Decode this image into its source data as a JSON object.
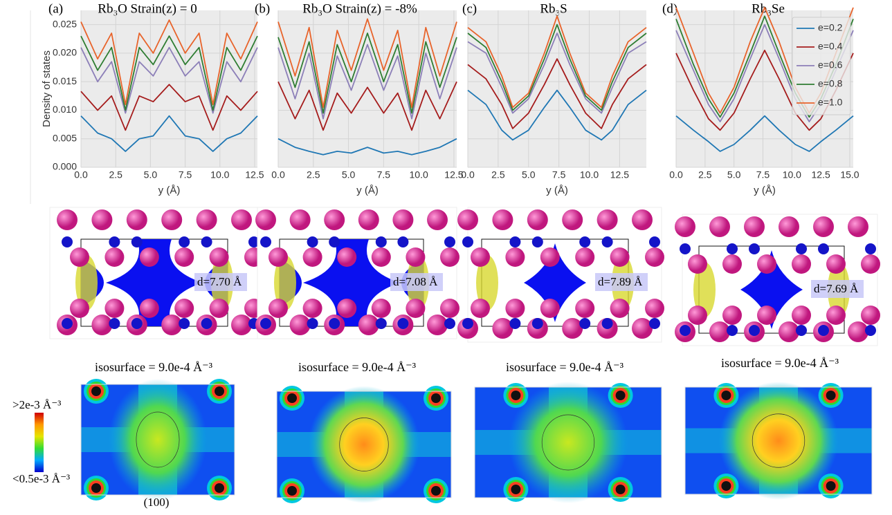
{
  "chart_data": [
    {
      "type": "line",
      "panel": "(a)",
      "title": "Rb₃O Strain(z) = 0",
      "ylabel": "Density of states",
      "xlabel": "y (Å)",
      "x": [
        0,
        1.2,
        2.2,
        3.2,
        4.2,
        5.2,
        6.35,
        7.5,
        8.5,
        9.5,
        10.5,
        11.5,
        12.7
      ],
      "xlim": [
        0,
        12.7
      ],
      "ylim": [
        0,
        0.0275
      ],
      "grid": true,
      "xticks": [
        {
          "value": 0,
          "label": "0.0"
        },
        {
          "value": 2.5,
          "label": "2.5"
        },
        {
          "value": 5,
          "label": "5.0"
        },
        {
          "value": 7.5,
          "label": "7.5"
        },
        {
          "value": 10,
          "label": "10.0"
        },
        {
          "value": 12.5,
          "label": "12.5"
        }
      ],
      "yticks": [
        {
          "value": 0,
          "label": "0.000"
        },
        {
          "value": 0.005,
          "label": "0.005"
        },
        {
          "value": 0.01,
          "label": "0.010"
        },
        {
          "value": 0.015,
          "label": "0.015"
        },
        {
          "value": 0.02,
          "label": "0.020"
        },
        {
          "value": 0.025,
          "label": "0.025"
        }
      ],
      "series": [
        {
          "color": "#1f77b4",
          "values": [
            0.009,
            0.006,
            0.005,
            0.0028,
            0.005,
            0.0055,
            0.009,
            0.0055,
            0.005,
            0.0028,
            0.005,
            0.006,
            0.009
          ]
        },
        {
          "color": "#a51c1c",
          "values": [
            0.0133,
            0.01,
            0.0125,
            0.0065,
            0.0125,
            0.0115,
            0.0145,
            0.0115,
            0.0125,
            0.0065,
            0.0125,
            0.01,
            0.0133
          ]
        },
        {
          "color": "#8c7fb8",
          "values": [
            0.021,
            0.015,
            0.0185,
            0.0095,
            0.0185,
            0.016,
            0.021,
            0.016,
            0.0185,
            0.0095,
            0.0185,
            0.015,
            0.021
          ]
        },
        {
          "color": "#2e7d32",
          "values": [
            0.023,
            0.017,
            0.021,
            0.01,
            0.021,
            0.018,
            0.023,
            0.018,
            0.021,
            0.01,
            0.021,
            0.017,
            0.023
          ]
        },
        {
          "color": "#e8632a",
          "values": [
            0.0255,
            0.019,
            0.0235,
            0.011,
            0.0235,
            0.02,
            0.0258,
            0.02,
            0.0235,
            0.011,
            0.0235,
            0.019,
            0.0255
          ]
        }
      ]
    },
    {
      "type": "line",
      "panel": "(b)",
      "title": "Rb₃O Strain(z) = -8%",
      "xlabel": "y (Å)",
      "x": [
        0,
        1.2,
        2.2,
        3.2,
        4.2,
        5.2,
        6.35,
        7.5,
        8.5,
        9.5,
        10.5,
        11.5,
        12.7
      ],
      "xlim": [
        0,
        12.7
      ],
      "ylim": [
        0,
        0.0275
      ],
      "grid": true,
      "xticks": [
        {
          "value": 0,
          "label": "0.0"
        },
        {
          "value": 2.5,
          "label": "2.5"
        },
        {
          "value": 5,
          "label": "5.0"
        },
        {
          "value": 7.5,
          "label": "7.5"
        },
        {
          "value": 10,
          "label": "10.0"
        },
        {
          "value": 12.5,
          "label": "12.5"
        }
      ],
      "yticks": [
        0,
        0.005,
        0.01,
        0.015,
        0.02,
        0.025
      ],
      "series": [
        {
          "color": "#1f77b4",
          "values": [
            0.005,
            0.0035,
            0.0028,
            0.0022,
            0.0028,
            0.0025,
            0.0035,
            0.0025,
            0.0028,
            0.0022,
            0.0028,
            0.0035,
            0.005
          ]
        },
        {
          "color": "#a51c1c",
          "values": [
            0.015,
            0.0085,
            0.0135,
            0.0065,
            0.013,
            0.0095,
            0.014,
            0.0095,
            0.013,
            0.0065,
            0.0135,
            0.0085,
            0.015
          ]
        },
        {
          "color": "#8c7fb8",
          "values": [
            0.021,
            0.012,
            0.02,
            0.0085,
            0.0195,
            0.0135,
            0.0215,
            0.0135,
            0.0195,
            0.0085,
            0.02,
            0.012,
            0.021
          ]
        },
        {
          "color": "#2e7d32",
          "values": [
            0.0228,
            0.014,
            0.022,
            0.0095,
            0.0215,
            0.015,
            0.0235,
            0.015,
            0.0215,
            0.0095,
            0.022,
            0.014,
            0.0228
          ]
        },
        {
          "color": "#e8632a",
          "values": [
            0.0255,
            0.016,
            0.0245,
            0.0105,
            0.024,
            0.017,
            0.026,
            0.017,
            0.024,
            0.0105,
            0.0245,
            0.016,
            0.0255
          ]
        }
      ]
    },
    {
      "type": "line",
      "panel": "(c)",
      "title": "Rb₃S",
      "xlabel": "y (Å)",
      "x": [
        0,
        1.5,
        2.8,
        3.7,
        5.0,
        6.3,
        7.35,
        8.4,
        9.7,
        11.0,
        11.9,
        13.2,
        14.7
      ],
      "xlim": [
        0,
        14.7
      ],
      "ylim": [
        0,
        0.0275
      ],
      "grid": true,
      "xticks": [
        {
          "value": 0,
          "label": "0.0"
        },
        {
          "value": 2.5,
          "label": "2.5"
        },
        {
          "value": 5,
          "label": "5.0"
        },
        {
          "value": 7.5,
          "label": "7.5"
        },
        {
          "value": 10,
          "label": "10.0"
        },
        {
          "value": 12.5,
          "label": "12.5"
        }
      ],
      "yticks": [
        0,
        0.005,
        0.01,
        0.015,
        0.02,
        0.025
      ],
      "series": [
        {
          "color": "#1f77b4",
          "values": [
            0.0135,
            0.011,
            0.0065,
            0.0048,
            0.0065,
            0.0105,
            0.0135,
            0.0105,
            0.0065,
            0.0048,
            0.0065,
            0.011,
            0.0135
          ]
        },
        {
          "color": "#a51c1c",
          "values": [
            0.018,
            0.0155,
            0.011,
            0.0068,
            0.0095,
            0.0145,
            0.019,
            0.0145,
            0.0095,
            0.0068,
            0.011,
            0.0155,
            0.018
          ]
        },
        {
          "color": "#8c7fb8",
          "values": [
            0.022,
            0.02,
            0.014,
            0.0095,
            0.012,
            0.018,
            0.0235,
            0.018,
            0.012,
            0.0095,
            0.014,
            0.02,
            0.022
          ]
        },
        {
          "color": "#2e7d32",
          "values": [
            0.0235,
            0.021,
            0.015,
            0.01,
            0.0125,
            0.019,
            0.025,
            0.019,
            0.0125,
            0.01,
            0.015,
            0.021,
            0.0235
          ]
        },
        {
          "color": "#e8632a",
          "values": [
            0.0245,
            0.022,
            0.016,
            0.0105,
            0.013,
            0.02,
            0.0265,
            0.02,
            0.013,
            0.0105,
            0.016,
            0.022,
            0.0245
          ]
        }
      ]
    },
    {
      "type": "line",
      "panel": "(d)",
      "title": "Rb₃Se",
      "xlabel": "y (Å)",
      "legend": "upper right",
      "x": [
        0,
        1.5,
        2.8,
        3.8,
        5.0,
        6.4,
        7.65,
        8.9,
        10.3,
        11.5,
        12.5,
        13.8,
        15.3
      ],
      "xlim": [
        0,
        15.3
      ],
      "ylim": [
        0,
        0.0275
      ],
      "grid": true,
      "xticks": [
        {
          "value": 0,
          "label": "0.0"
        },
        {
          "value": 2.5,
          "label": "2.5"
        },
        {
          "value": 5,
          "label": "5.0"
        },
        {
          "value": 7.5,
          "label": "7.5"
        },
        {
          "value": 10,
          "label": "10.0"
        },
        {
          "value": 12.5,
          "label": "12.5"
        },
        {
          "value": 15,
          "label": "15.0"
        }
      ],
      "yticks": [
        0,
        0.005,
        0.01,
        0.015,
        0.02,
        0.025
      ],
      "series": [
        {
          "name": "e=0.2",
          "color": "#1f77b4",
          "values": [
            0.009,
            0.0065,
            0.0045,
            0.0028,
            0.004,
            0.0065,
            0.009,
            0.0065,
            0.004,
            0.0028,
            0.0045,
            0.0065,
            0.009
          ]
        },
        {
          "name": "e=0.4",
          "color": "#a51c1c",
          "values": [
            0.02,
            0.0135,
            0.0085,
            0.0065,
            0.0095,
            0.0155,
            0.0205,
            0.0155,
            0.0095,
            0.0065,
            0.0085,
            0.0135,
            0.02
          ]
        },
        {
          "name": "e=0.6",
          "color": "#8c7fb8",
          "values": [
            0.024,
            0.017,
            0.011,
            0.008,
            0.012,
            0.019,
            0.025,
            0.019,
            0.012,
            0.008,
            0.011,
            0.017,
            0.024
          ]
        },
        {
          "name": "e=0.8",
          "color": "#2e7d32",
          "values": [
            0.026,
            0.018,
            0.012,
            0.0088,
            0.013,
            0.02,
            0.0265,
            0.02,
            0.013,
            0.0088,
            0.012,
            0.018,
            0.026
          ]
        },
        {
          "name": "e=1.0",
          "color": "#e8632a",
          "values": [
            0.028,
            0.02,
            0.013,
            0.0095,
            0.014,
            0.022,
            0.028,
            0.022,
            0.014,
            0.0095,
            0.013,
            0.02,
            0.028
          ]
        }
      ]
    }
  ],
  "structures": [
    {
      "d_label": "d=7.70 Å",
      "isosurface": "isosurface = 9.0e-4 Å⁻³"
    },
    {
      "d_label": "d=7.08 Å",
      "isosurface": "isosurface = 9.0e-4 Å⁻³"
    },
    {
      "d_label": "d=7.89 Å",
      "isosurface": "isosurface = 9.0e-4 Å⁻³"
    },
    {
      "d_label": "d=7.69 Å",
      "isosurface": "isosurface = 9.0e-4 Å⁻³"
    }
  ],
  "colorbar": {
    "max_label": ">2e-3 Å⁻³",
    "min_label": "<0.5e-3 Å⁻³"
  },
  "plane_label": "(100)"
}
